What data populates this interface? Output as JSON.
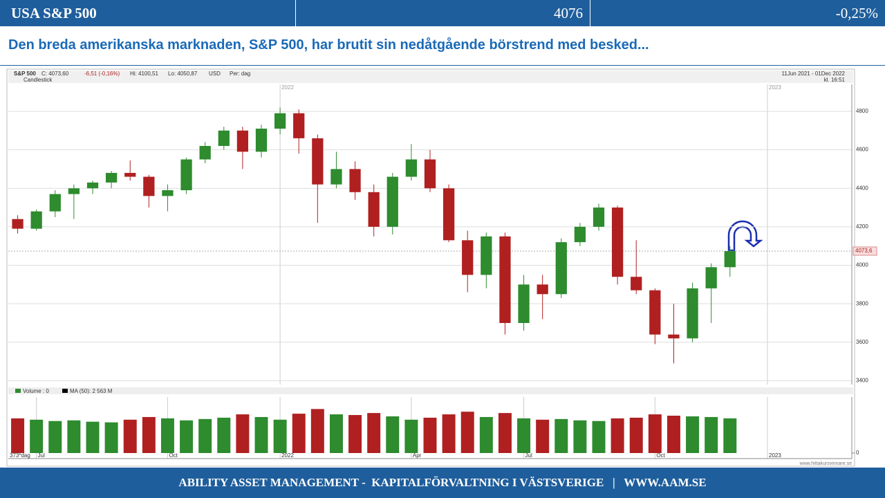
{
  "header": {
    "title": "USA S&P 500",
    "value": "4076",
    "change": "-0,25%"
  },
  "subtitle": "Den breda amerikanska marknaden, S&P 500, har brutit sin nedåtgående börstrend med besked...",
  "footer": "ABILITY ASSET MANAGEMENT -  KAPITALFÖRVALTNING I VÄSTSVERIGE   |   WWW.AAM.SE",
  "chart_data": [
    {
      "type": "candlestick",
      "title": "S&P 500",
      "close_label": "C: 4073,60",
      "change_label": "-6,51 (-0,16%)",
      "high_label": "Hi: 4100,51",
      "low_label": "Lo: 4050,87",
      "currency": "USD",
      "period": "Per: dag",
      "style_label": "Candlestick",
      "date_range": "11Jun 2021 - 01Dec 2022",
      "time": "kl. 16:51",
      "categories": [
        null,
        null,
        null,
        null,
        null,
        null,
        null,
        null,
        null,
        null,
        null,
        null,
        null,
        null,
        "2022",
        null,
        null,
        null,
        null,
        null,
        null,
        null,
        null,
        null,
        null,
        null,
        null,
        null,
        null,
        null,
        null,
        null,
        null,
        null,
        null,
        null,
        null,
        null,
        null,
        null,
        "2023",
        null,
        null,
        null,
        null
      ],
      "open": [
        4240,
        4190,
        4280,
        4370,
        4400,
        4430,
        4480,
        4460,
        4360,
        4390,
        4550,
        4620,
        4700,
        4590,
        4710,
        4790,
        4660,
        4420,
        4500,
        4380,
        4200,
        4460,
        4550,
        4400,
        4130,
        3950,
        4150,
        3700,
        3900,
        3850,
        4120,
        4200,
        4300,
        3940,
        3870,
        3640,
        3620,
        3880,
        3990,
        null,
        null,
        null,
        null,
        null,
        null
      ],
      "high": [
        4260,
        4290,
        4390,
        4420,
        4440,
        4490,
        4545,
        4470,
        4420,
        4560,
        4640,
        4720,
        4720,
        4730,
        4820,
        4810,
        4680,
        4590,
        4540,
        4420,
        4480,
        4630,
        4600,
        4420,
        4180,
        4170,
        4170,
        3950,
        3950,
        4140,
        4220,
        4320,
        4310,
        4130,
        3880,
        3800,
        3910,
        4010,
        4100,
        null,
        null,
        null,
        null,
        null,
        null
      ],
      "low": [
        4165,
        4180,
        4250,
        4240,
        4370,
        4400,
        4440,
        4300,
        4280,
        4370,
        4530,
        4600,
        4500,
        4560,
        4680,
        4580,
        4220,
        4400,
        4340,
        4150,
        4160,
        4440,
        4380,
        4120,
        3860,
        3880,
        3640,
        3660,
        3720,
        3830,
        4100,
        4180,
        3900,
        3850,
        3590,
        3490,
        3600,
        3700,
        3940,
        null,
        null,
        null,
        null,
        null,
        null
      ],
      "close": [
        4190,
        4280,
        4370,
        4400,
        4430,
        4480,
        4460,
        4360,
        4390,
        4550,
        4620,
        4700,
        4590,
        4710,
        4790,
        4660,
        4420,
        4500,
        4380,
        4200,
        4460,
        4550,
        4400,
        4130,
        3950,
        4150,
        3700,
        3900,
        3850,
        4120,
        4200,
        4300,
        3940,
        3870,
        3640,
        3620,
        3880,
        3990,
        4073.6,
        null,
        null,
        null,
        null,
        null,
        null
      ],
      "up_color": "#2e8b2e",
      "down_color": "#b02020",
      "ylim": [
        3380,
        4940
      ],
      "yticks": [
        3400,
        3600,
        3800,
        4000,
        4200,
        4400,
        4600,
        4800
      ],
      "last_price": {
        "value": 4073.6,
        "label": "4073,6"
      },
      "grid": true
    },
    {
      "type": "bar",
      "legend": [
        "Volume : 0",
        "MA (50): 2 563 M"
      ],
      "note": "373*dag",
      "source": "www.hittakursvinnare.se",
      "categories": [
        null,
        "Jul",
        null,
        null,
        null,
        null,
        null,
        null,
        "Oct",
        null,
        null,
        null,
        null,
        null,
        "2022",
        null,
        null,
        null,
        null,
        null,
        null,
        "Apr",
        null,
        null,
        null,
        null,
        null,
        "Jul",
        null,
        null,
        null,
        null,
        null,
        null,
        "Oct",
        null,
        null,
        null,
        null,
        null,
        "2023",
        null,
        null,
        null,
        null
      ],
      "values": [
        2600,
        2500,
        2400,
        2450,
        2350,
        2300,
        2500,
        2700,
        2600,
        2450,
        2550,
        2650,
        2900,
        2700,
        2500,
        2950,
        3300,
        2900,
        2850,
        3000,
        2750,
        2500,
        2650,
        2900,
        3100,
        2700,
        3000,
        2600,
        2500,
        2550,
        2450,
        2400,
        2600,
        2650,
        2900,
        2800,
        2750,
        2700,
        2600,
        null,
        null,
        null,
        null,
        null,
        null
      ],
      "ylim": [
        0,
        4200
      ],
      "yticks": [
        0
      ]
    }
  ]
}
